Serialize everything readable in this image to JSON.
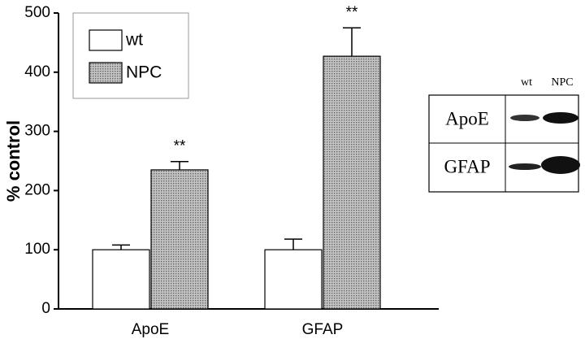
{
  "chart_data": {
    "type": "bar",
    "y_label": "% control",
    "categories": [
      "ApoE",
      "GFAP"
    ],
    "series": [
      {
        "name": "wt",
        "color": "#ffffff",
        "values": [
          100,
          100
        ],
        "errors": [
          8,
          18
        ]
      },
      {
        "name": "NPC",
        "color": "#c4c4c4",
        "values": [
          235,
          427
        ],
        "errors": [
          14,
          48
        ],
        "annotations": [
          "**",
          "**"
        ]
      }
    ],
    "ylim": [
      0,
      500
    ],
    "yticks": [
      0,
      100,
      200,
      300,
      400,
      500
    ],
    "grid": false,
    "legend": "top-left"
  },
  "blot": {
    "columns": [
      "wt",
      "NPC"
    ],
    "rows": [
      "ApoE",
      "GFAP"
    ]
  }
}
